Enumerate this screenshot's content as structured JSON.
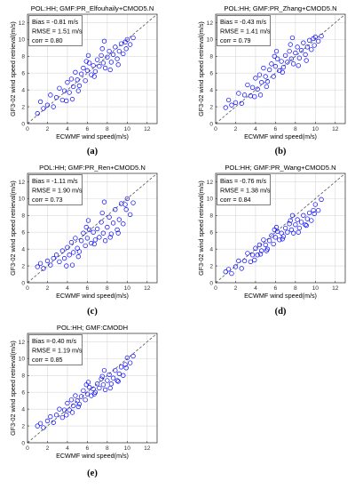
{
  "panels": [
    {
      "title": "POL:HH; GMF:PR_Elfouhaily+CMOD5.N",
      "bias": "Bias = -0.81 m/s",
      "rmse": "RMSE = 1.51 m/s",
      "corr": "corr = 0.80",
      "caption": "(a)"
    },
    {
      "title": "POL:HH; GMF:PR_Zhang+CMOD5.N",
      "bias": "Bias = -0.43 m/s",
      "rmse": "RMSE = 1.41 m/s",
      "corr": "corr = 0.79",
      "caption": "(b)"
    },
    {
      "title": "POL:HH; GMF:PR_Ren+CMOD5.N",
      "bias": "Bias = -1.11 m/s",
      "rmse": "RMSE = 1.90 m/s",
      "corr": "corr = 0.73",
      "caption": "(c)"
    },
    {
      "title": "POL:HH; GMF:PR_Wang+CMOD5.N",
      "bias": "Bias = -0.76 m/s",
      "rmse": "RMSE = 1.38 m/s",
      "corr": "corr = 0.84",
      "caption": "(d)"
    },
    {
      "title": "POL:HH; GMF:CMODH",
      "bias": "Bias =-0.40 m/s",
      "rmse": "RMSE = 1.19 m/s",
      "corr": "corr = 0.85",
      "caption": "(e)"
    }
  ],
  "chart_data": [
    {
      "type": "scatter",
      "title": "POL:HH; GMF:PR_Elfouhaily+CMOD5.N",
      "xlabel": "ECWMF wind speed(m/s)",
      "ylabel": "GF3-02 wind speed retrieval(m/s)",
      "xlim": [
        0,
        13
      ],
      "ylim": [
        0,
        13
      ],
      "xticks": [
        0,
        2,
        4,
        6,
        8,
        10,
        12
      ],
      "yticks": [
        0,
        2,
        4,
        6,
        8,
        10,
        12
      ],
      "grid": true,
      "reference_line": "y = x (dashed)",
      "stats_box": "top-left",
      "marker_color": "#0000ff",
      "x": [
        1.0,
        1.3,
        1.6,
        2.0,
        2.3,
        2.6,
        2.9,
        3.2,
        3.5,
        3.7,
        4.0,
        4.2,
        4.4,
        4.6,
        4.8,
        5.0,
        5.2,
        5.4,
        5.6,
        5.8,
        6.0,
        6.2,
        6.4,
        6.6,
        6.8,
        7.0,
        7.2,
        7.4,
        7.6,
        7.8,
        8.0,
        8.2,
        8.4,
        8.6,
        8.8,
        9.0,
        9.2,
        9.4,
        9.6,
        9.8,
        10.0,
        10.3,
        10.6,
        5.1,
        5.9,
        6.7,
        7.5,
        8.3,
        9.1,
        9.9,
        4.5,
        3.9,
        6.1,
        7.7
      ],
      "y": [
        1.2,
        2.6,
        1.8,
        2.2,
        3.4,
        2.0,
        3.1,
        4.2,
        2.8,
        3.9,
        4.9,
        3.7,
        5.3,
        4.4,
        6.1,
        5.2,
        4.5,
        5.9,
        6.6,
        5.1,
        6.3,
        7.2,
        5.8,
        6.9,
        6.2,
        7.6,
        6.8,
        8.1,
        7.2,
        6.6,
        7.9,
        8.6,
        7.3,
        8.2,
        9.1,
        7.7,
        8.6,
        9.5,
        8.3,
        9.7,
        10.0,
        9.4,
        10.2,
        3.9,
        7.4,
        5.6,
        8.9,
        6.4,
        7.0,
        8.9,
        2.9,
        2.7,
        8.1,
        9.8
      ]
    },
    {
      "type": "scatter",
      "title": "POL:HH; GMF:PR_Zhang+CMOD5.N",
      "xlabel": "ECWMF wind speed(m/s)",
      "ylabel": "GF3-02 wind speed retrieval(m/s)",
      "xlim": [
        0,
        13
      ],
      "ylim": [
        0,
        13
      ],
      "xticks": [
        0,
        2,
        4,
        6,
        8,
        10,
        12
      ],
      "yticks": [
        0,
        2,
        4,
        6,
        8,
        10,
        12
      ],
      "grid": true,
      "reference_line": "y = x (dashed)",
      "stats_box": "top-left",
      "marker_color": "#0000ff",
      "x": [
        1.0,
        1.3,
        1.6,
        2.0,
        2.3,
        2.6,
        2.9,
        3.2,
        3.5,
        3.7,
        4.0,
        4.2,
        4.4,
        4.6,
        4.8,
        5.0,
        5.2,
        5.4,
        5.6,
        5.8,
        6.0,
        6.2,
        6.4,
        6.6,
        6.8,
        7.0,
        7.2,
        7.4,
        7.6,
        7.8,
        8.0,
        8.2,
        8.4,
        8.6,
        8.8,
        9.0,
        9.2,
        9.4,
        9.6,
        9.8,
        10.0,
        10.3,
        10.6,
        5.1,
        5.9,
        6.7,
        7.5,
        8.3,
        9.1,
        9.9,
        4.5,
        3.9,
        6.1,
        7.7
      ],
      "y": [
        1.9,
        2.8,
        2.2,
        2.5,
        3.6,
        2.4,
        3.4,
        4.6,
        3.3,
        4.3,
        5.4,
        4.1,
        5.8,
        4.9,
        6.6,
        5.6,
        5.0,
        6.4,
        7.1,
        5.6,
        6.8,
        7.7,
        6.3,
        7.4,
        6.7,
        8.1,
        7.3,
        8.6,
        7.7,
        7.1,
        8.4,
        9.1,
        7.8,
        8.7,
        9.6,
        8.2,
        9.1,
        9.9,
        8.8,
        10.1,
        10.3,
        9.8,
        10.4,
        4.4,
        8.0,
        6.1,
        9.4,
        6.9,
        7.5,
        9.3,
        3.4,
        3.2,
        8.6,
        10.2
      ]
    },
    {
      "type": "scatter",
      "title": "POL:HH; GMF:PR_Ren+CMOD5.N",
      "xlabel": "ECWMF wind speed(m/s)",
      "ylabel": "GF3-02 wind speed retrieval(m/s)",
      "xlim": [
        0,
        13
      ],
      "ylim": [
        0,
        13
      ],
      "xticks": [
        0,
        2,
        4,
        6,
        8,
        10,
        12
      ],
      "yticks": [
        0,
        2,
        4,
        6,
        8,
        10,
        12
      ],
      "grid": true,
      "reference_line": "y = x (dashed)",
      "stats_box": "top-left",
      "marker_color": "#0000ff",
      "x": [
        1.0,
        1.3,
        1.6,
        2.0,
        2.3,
        2.6,
        2.9,
        3.2,
        3.5,
        3.7,
        4.0,
        4.2,
        4.4,
        4.6,
        4.8,
        5.0,
        5.2,
        5.4,
        5.6,
        5.8,
        6.0,
        6.2,
        6.4,
        6.6,
        6.8,
        7.0,
        7.2,
        7.4,
        7.6,
        7.8,
        8.0,
        8.2,
        8.4,
        8.6,
        8.8,
        9.0,
        9.2,
        9.4,
        9.6,
        9.8,
        10.0,
        10.3,
        10.6,
        5.1,
        5.9,
        6.7,
        7.5,
        8.3,
        9.1,
        9.9,
        4.5,
        3.9,
        6.1,
        7.7
      ],
      "y": [
        1.9,
        2.3,
        1.7,
        2.6,
        2.1,
        2.9,
        3.3,
        2.5,
        3.8,
        2.9,
        4.2,
        3.3,
        4.8,
        3.6,
        5.3,
        4.1,
        3.7,
        5.0,
        5.9,
        4.4,
        5.3,
        6.3,
        4.7,
        6.0,
        5.1,
        6.4,
        5.4,
        7.2,
        5.9,
        5.0,
        6.6,
        7.8,
        5.8,
        7.1,
        8.7,
        6.3,
        7.5,
        9.4,
        7.0,
        9.3,
        10.0,
        8.1,
        9.5,
        3.1,
        6.6,
        4.6,
        8.3,
        5.4,
        5.9,
        8.7,
        2.1,
        2.0,
        7.4,
        9.6
      ]
    },
    {
      "type": "scatter",
      "title": "POL:HH; GMF:PR_Wang+CMOD5.N",
      "xlabel": "ECWMF wind speed(m/s)",
      "ylabel": "GF3-02 wind speed retrieval(m/s)",
      "xlim": [
        0,
        13
      ],
      "ylim": [
        0,
        13
      ],
      "xticks": [
        0,
        2,
        4,
        6,
        8,
        10,
        12
      ],
      "yticks": [
        0,
        2,
        4,
        6,
        8,
        10,
        12
      ],
      "grid": true,
      "reference_line": "y = x (dashed)",
      "stats_box": "top-left",
      "marker_color": "#0000ff",
      "x": [
        1.0,
        1.3,
        1.6,
        2.0,
        2.3,
        2.6,
        2.9,
        3.2,
        3.5,
        3.7,
        4.0,
        4.2,
        4.4,
        4.6,
        4.8,
        5.0,
        5.2,
        5.4,
        5.6,
        5.8,
        6.0,
        6.2,
        6.4,
        6.6,
        6.8,
        7.0,
        7.2,
        7.4,
        7.6,
        7.8,
        8.0,
        8.2,
        8.4,
        8.6,
        8.8,
        9.0,
        9.2,
        9.4,
        9.6,
        9.8,
        10.0,
        10.3,
        10.6,
        5.1,
        5.9,
        6.7,
        7.5,
        8.3,
        9.1,
        9.9,
        4.5,
        3.9,
        6.1,
        7.7
      ],
      "y": [
        1.3,
        1.6,
        1.1,
        1.9,
        2.6,
        1.7,
        2.6,
        3.5,
        2.5,
        3.3,
        4.1,
        3.3,
        4.5,
        3.8,
        5.1,
        4.5,
        4.0,
        5.0,
        5.6,
        4.6,
        5.4,
        6.1,
        5.1,
        5.9,
        5.5,
        6.5,
        6.0,
        7.0,
        6.3,
        5.9,
        6.9,
        7.5,
        6.5,
        7.2,
        8.0,
        6.9,
        7.6,
        8.3,
        7.4,
        8.6,
        9.3,
        8.6,
        9.9,
        3.8,
        6.3,
        5.2,
        7.4,
        6.0,
        6.8,
        8.2,
        3.4,
        2.7,
        6.6,
        8.0
      ]
    },
    {
      "type": "scatter",
      "title": "POL:HH; GMF:CMODH",
      "xlabel": "ECWMF wind speed(m/s)",
      "ylabel": "GF3-02 wind speed retrieval(m/s)",
      "xlim": [
        0,
        13
      ],
      "ylim": [
        0,
        13
      ],
      "xticks": [
        0,
        2,
        4,
        6,
        8,
        10,
        12
      ],
      "yticks": [
        0,
        2,
        4,
        6,
        8,
        10,
        12
      ],
      "grid": true,
      "reference_line": "y = x (dashed)",
      "stats_box": "top-left",
      "marker_color": "#0000ff",
      "x": [
        1.0,
        1.3,
        1.6,
        2.0,
        2.3,
        2.6,
        2.9,
        3.2,
        3.5,
        3.7,
        4.0,
        4.2,
        4.4,
        4.6,
        4.8,
        5.0,
        5.2,
        5.4,
        5.6,
        5.8,
        6.0,
        6.2,
        6.4,
        6.6,
        6.8,
        7.0,
        7.2,
        7.4,
        7.6,
        7.8,
        8.0,
        8.2,
        8.4,
        8.6,
        8.8,
        9.0,
        9.2,
        9.4,
        9.6,
        9.8,
        10.0,
        10.3,
        10.6,
        5.1,
        5.9,
        6.7,
        7.5,
        8.3,
        9.1,
        9.9,
        4.5,
        3.9,
        6.1,
        7.7
      ],
      "y": [
        2.0,
        2.3,
        1.8,
        2.6,
        3.1,
        2.4,
        3.3,
        4.0,
        3.0,
        3.9,
        4.7,
        3.9,
        5.1,
        4.4,
        5.6,
        5.0,
        4.6,
        5.5,
        6.2,
        5.1,
        5.8,
        6.6,
        5.6,
        6.4,
        6.0,
        7.0,
        6.5,
        7.6,
        6.9,
        6.3,
        7.4,
        8.1,
        7.0,
        7.7,
        8.6,
        7.4,
        8.2,
        9.0,
        8.0,
        9.3,
        10.1,
        9.5,
        10.3,
        4.3,
        6.9,
        5.8,
        7.9,
        6.5,
        7.3,
        8.9,
        3.6,
        3.3,
        7.2,
        8.6
      ]
    }
  ]
}
